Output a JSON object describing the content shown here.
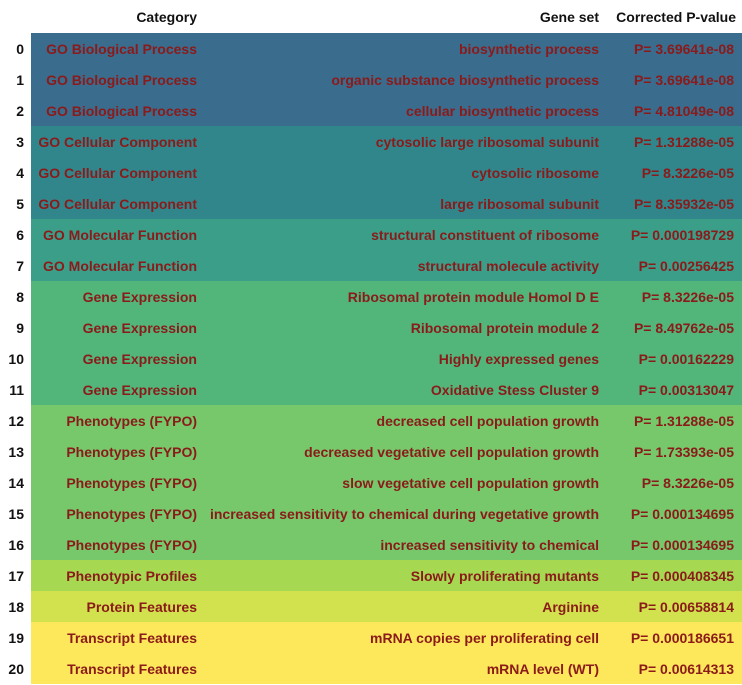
{
  "columns": {
    "index": "",
    "category": "Category",
    "gene_set": "Gene set",
    "p_value": "Corrected P-value"
  },
  "rows": [
    {
      "index": "0",
      "category": "GO Biological Process",
      "gene_set": "biosynthetic process",
      "p_value": "P= 3.69641e-08",
      "color": "#3a6c8d"
    },
    {
      "index": "1",
      "category": "GO Biological Process",
      "gene_set": "organic substance biosynthetic process",
      "p_value": "P= 3.69641e-08",
      "color": "#3a6c8d"
    },
    {
      "index": "2",
      "category": "GO Biological Process",
      "gene_set": "cellular biosynthetic process",
      "p_value": "P= 4.81049e-08",
      "color": "#3a6c8d"
    },
    {
      "index": "3",
      "category": "GO Cellular Component",
      "gene_set": "cytosolic large ribosomal subunit",
      "p_value": "P= 1.31288e-05",
      "color": "#31868c"
    },
    {
      "index": "4",
      "category": "GO Cellular Component",
      "gene_set": "cytosolic ribosome",
      "p_value": "P= 8.3226e-05",
      "color": "#31868c"
    },
    {
      "index": "5",
      "category": "GO Cellular Component",
      "gene_set": "large ribosomal subunit",
      "p_value": "P= 8.35932e-05",
      "color": "#31868c"
    },
    {
      "index": "6",
      "category": "GO Molecular Function",
      "gene_set": "structural constituent of ribosome",
      "p_value": "P= 0.000198729",
      "color": "#3b9e89"
    },
    {
      "index": "7",
      "category": "GO Molecular Function",
      "gene_set": "structural molecule activity",
      "p_value": "P= 0.00256425",
      "color": "#3b9e89"
    },
    {
      "index": "8",
      "category": "Gene Expression",
      "gene_set": "Ribosomal protein module Homol D E",
      "p_value": "P= 8.3226e-05",
      "color": "#52b579"
    },
    {
      "index": "9",
      "category": "Gene Expression",
      "gene_set": "Ribosomal protein module 2",
      "p_value": "P= 8.49762e-05",
      "color": "#52b579"
    },
    {
      "index": "10",
      "category": "Gene Expression",
      "gene_set": "Highly expressed genes",
      "p_value": "P= 0.00162229",
      "color": "#52b579"
    },
    {
      "index": "11",
      "category": "Gene Expression",
      "gene_set": "Oxidative Stess Cluster 9",
      "p_value": "P= 0.00313047",
      "color": "#52b579"
    },
    {
      "index": "12",
      "category": "Phenotypes (FYPO)",
      "gene_set": "decreased cell population growth",
      "p_value": "P= 1.31288e-05",
      "color": "#76c86b"
    },
    {
      "index": "13",
      "category": "Phenotypes (FYPO)",
      "gene_set": "decreased vegetative cell population growth",
      "p_value": "P= 1.73393e-05",
      "color": "#76c86b"
    },
    {
      "index": "14",
      "category": "Phenotypes (FYPO)",
      "gene_set": "slow vegetative cell population growth",
      "p_value": "P= 8.3226e-05",
      "color": "#76c86b"
    },
    {
      "index": "15",
      "category": "Phenotypes (FYPO)",
      "gene_set": "increased sensitivity to chemical during vegetative growth",
      "p_value": "P= 0.000134695",
      "color": "#76c86b"
    },
    {
      "index": "16",
      "category": "Phenotypes (FYPO)",
      "gene_set": "increased sensitivity to chemical",
      "p_value": "P= 0.000134695",
      "color": "#76c86b"
    },
    {
      "index": "17",
      "category": "Phenotypic Profiles",
      "gene_set": "Slowly proliferating mutants",
      "p_value": "P= 0.000408345",
      "color": "#a6d851"
    },
    {
      "index": "18",
      "category": "Protein Features",
      "gene_set": "Arginine",
      "p_value": "P= 0.00658814",
      "color": "#d1e24e"
    },
    {
      "index": "19",
      "category": "Transcript Features",
      "gene_set": "mRNA copies per proliferating cell",
      "p_value": "P= 0.000186651",
      "color": "#fde75a"
    },
    {
      "index": "20",
      "category": "Transcript Features",
      "gene_set": "mRNA level (WT)",
      "p_value": "P= 0.00614313",
      "color": "#fde75a"
    }
  ]
}
